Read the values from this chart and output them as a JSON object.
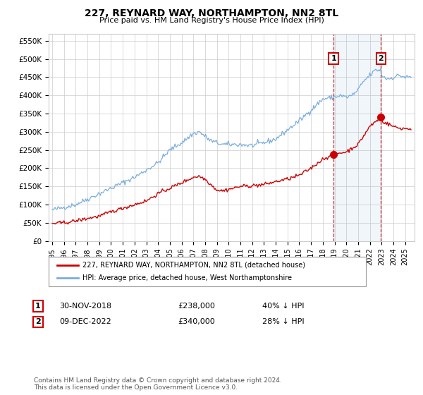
{
  "title": "227, REYNARD WAY, NORTHAMPTON, NN2 8TL",
  "subtitle": "Price paid vs. HM Land Registry's House Price Index (HPI)",
  "ylabel_ticks": [
    "£0",
    "£50K",
    "£100K",
    "£150K",
    "£200K",
    "£250K",
    "£300K",
    "£350K",
    "£400K",
    "£450K",
    "£500K",
    "£550K"
  ],
  "ytick_values": [
    0,
    50000,
    100000,
    150000,
    200000,
    250000,
    300000,
    350000,
    400000,
    450000,
    500000,
    550000
  ],
  "ylim": [
    0,
    570000
  ],
  "hpi_color": "#7aaddc",
  "price_color": "#cc0000",
  "marker1_date_x": 2018.917,
  "marker1_price": 238000,
  "marker2_date_x": 2022.94,
  "marker2_price": 340000,
  "annotation1": {
    "num": "1",
    "date": "30-NOV-2018",
    "price": "£238,000",
    "pct": "40% ↓ HPI"
  },
  "annotation2": {
    "num": "2",
    "date": "09-DEC-2022",
    "price": "£340,000",
    "pct": "28% ↓ HPI"
  },
  "legend_label_price": "227, REYNARD WAY, NORTHAMPTON, NN2 8TL (detached house)",
  "legend_label_hpi": "HPI: Average price, detached house, West Northamptonshire",
  "footer": "Contains HM Land Registry data © Crown copyright and database right 2024.\nThis data is licensed under the Open Government Licence v3.0.",
  "background_color": "#ffffff",
  "grid_color": "#cccccc",
  "xlim_left": 1994.7,
  "xlim_right": 2025.8
}
